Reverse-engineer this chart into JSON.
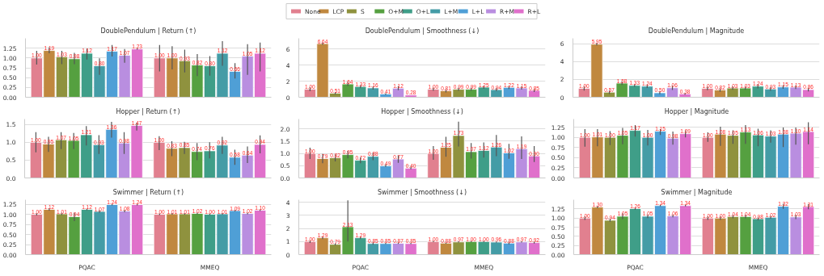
{
  "chart_data": [
    {
      "type": "bar",
      "title": "DoublePendulum | Return (↑)",
      "categories": [
        null,
        null
      ],
      "ylim": [
        0,
        1.5
      ],
      "yticks": [
        {
          "value": 0,
          "label": "0.00"
        },
        {
          "value": 0.25,
          "label": "0.25"
        },
        {
          "value": 0.5,
          "label": "0.50"
        },
        {
          "value": 0.75,
          "label": "0.75"
        },
        {
          "value": 1.0,
          "label": "1.00"
        },
        {
          "value": 1.25,
          "label": "1.25"
        }
      ],
      "grid": "y",
      "tick_labels": "y",
      "legend": "top",
      "series": [
        {
          "name": "None",
          "color": "#e1808f",
          "values": [
            1.0,
            1.0
          ],
          "value_labels": [
            "1.00",
            "1.00"
          ],
          "errors": [
            [
              0.83,
              1.18
            ],
            [
              0.66,
              1.33
            ]
          ]
        },
        {
          "name": "LCP",
          "color": "#c0883f",
          "values": [
            1.19,
            1.0
          ],
          "value_labels": [
            "1.19",
            "1.00"
          ],
          "errors": [
            [
              1.12,
              1.27
            ],
            [
              0.71,
              1.3
            ]
          ]
        },
        {
          "name": "S",
          "color": "#8f923e",
          "values": [
            1.03,
            0.93
          ],
          "value_labels": [
            "1.03",
            "0.93"
          ],
          "errors": [
            [
              0.84,
              1.18
            ],
            [
              0.63,
              1.21
            ]
          ]
        },
        {
          "name": "O+M",
          "color": "#55a040",
          "values": [
            0.98,
            0.82
          ],
          "value_labels": [
            "0.98",
            "0.82"
          ],
          "errors": [
            [
              0.84,
              1.13
            ],
            [
              0.54,
              1.1
            ]
          ]
        },
        {
          "name": "O+L",
          "color": "#3f9e88",
          "values": [
            1.12,
            0.8
          ],
          "value_labels": [
            "1.12",
            "0.80"
          ],
          "errors": [
            [
              0.96,
              1.24
            ],
            [
              0.55,
              1.05
            ]
          ]
        },
        {
          "name": "L+M",
          "color": "#449ca6",
          "values": [
            0.8,
            1.12
          ],
          "value_labels": [
            "0.80",
            "1.12"
          ],
          "errors": [
            [
              0.57,
              0.99
            ],
            [
              0.8,
              1.43
            ]
          ]
        },
        {
          "name": "L+L",
          "color": "#4f9fd6",
          "values": [
            1.17,
            0.66
          ],
          "value_labels": [
            "1.17",
            "0.66"
          ],
          "errors": [
            [
              1.04,
              1.33
            ],
            [
              0.48,
              0.87
            ]
          ]
        },
        {
          "name": "R+M",
          "color": "#b98ee0",
          "values": [
            1.07,
            1.05
          ],
          "value_labels": [
            "1.07",
            "1.05"
          ],
          "errors": [
            [
              0.88,
              1.23
            ],
            [
              0.57,
              1.35
            ]
          ]
        },
        {
          "name": "R+L",
          "color": "#e070cb",
          "values": [
            1.23,
            1.12
          ],
          "value_labels": [
            "1.23",
            "1.12"
          ],
          "errors": [
            [
              1.21,
              1.25
            ],
            [
              0.66,
              1.39
            ]
          ]
        }
      ]
    },
    {
      "type": "bar",
      "title": "DoublePendulum | Smoothness (↓)",
      "categories": [
        null,
        null
      ],
      "ylim": [
        0,
        7.3
      ],
      "yticks": [
        0,
        2,
        4,
        6
      ],
      "grid": "y",
      "tick_labels": "y",
      "series": [
        {
          "color": "#e1808f",
          "values": [
            1.0,
            1.0
          ],
          "value_labels": [
            "1.00",
            "1.00"
          ],
          "errors": [
            0.25,
            0.2
          ]
        },
        {
          "color": "#c0883f",
          "values": [
            6.64,
            0.81
          ],
          "value_labels": [
            "6.64",
            "0.81"
          ],
          "errors": [
            0.15,
            0.2
          ]
        },
        {
          "color": "#8f923e",
          "values": [
            0.51,
            0.99
          ],
          "value_labels": [
            "0.51",
            "0.99"
          ],
          "errors": [
            0.15,
            0.2
          ]
        },
        {
          "color": "#55a040",
          "values": [
            1.64,
            0.99
          ],
          "value_labels": [
            "1.64",
            "0.99"
          ],
          "errors": [
            0.25,
            0.2
          ]
        },
        {
          "color": "#3f9e88",
          "values": [
            1.33,
            1.25
          ],
          "value_labels": [
            "1.33",
            "1.25"
          ],
          "errors": [
            0.2,
            0.2
          ]
        },
        {
          "color": "#449ca6",
          "values": [
            1.16,
            0.94
          ],
          "value_labels": [
            "1.16",
            "0.94"
          ],
          "errors": [
            0.2,
            0.2
          ]
        },
        {
          "color": "#4f9fd6",
          "values": [
            0.41,
            1.22
          ],
          "value_labels": [
            "0.41",
            "1.22"
          ],
          "errors": [
            0.1,
            0.2
          ]
        },
        {
          "color": "#b98ee0",
          "values": [
            1.12,
            1.15
          ],
          "value_labels": [
            "1.12",
            "1.15"
          ],
          "errors": [
            0.25,
            0.2
          ]
        },
        {
          "color": "#e070cb",
          "values": [
            0.28,
            0.85
          ],
          "value_labels": [
            "0.28",
            "0.85"
          ],
          "errors": [
            null,
            0.2
          ]
        }
      ]
    },
    {
      "type": "bar",
      "title": "DoublePendulum | Magnitude",
      "categories": [
        null,
        null
      ],
      "ylim": [
        0,
        6.6
      ],
      "yticks": [
        0,
        2,
        4,
        6
      ],
      "grid": "y",
      "tick_labels": "y",
      "series": [
        {
          "color": "#e1808f",
          "values": [
            1.0,
            1.0
          ],
          "value_labels": [
            "1.00",
            "1.00"
          ],
          "errors": [
            0.25,
            0.2
          ]
        },
        {
          "color": "#c0883f",
          "values": [
            5.95,
            0.82
          ],
          "value_labels": [
            "5.95",
            "0.82"
          ],
          "errors": [
            0.15,
            0.2
          ]
        },
        {
          "color": "#8f923e",
          "values": [
            0.57,
            1.03
          ],
          "value_labels": [
            "0.57",
            "1.03"
          ],
          "errors": [
            0.2,
            0.2
          ]
        },
        {
          "color": "#55a040",
          "values": [
            1.58,
            1.03
          ],
          "value_labels": [
            "1.58",
            "1.03"
          ],
          "errors": [
            0.2,
            0.2
          ]
        },
        {
          "color": "#3f9e88",
          "values": [
            1.33,
            1.24
          ],
          "value_labels": [
            "1.33",
            "1.24"
          ],
          "errors": [
            0.15,
            0.25
          ]
        },
        {
          "color": "#449ca6",
          "values": [
            1.24,
            0.93
          ],
          "value_labels": [
            "1.24",
            "0.93"
          ],
          "errors": [
            0.2,
            0.2
          ]
        },
        {
          "color": "#4f9fd6",
          "values": [
            0.5,
            1.15
          ],
          "value_labels": [
            "0.50",
            "1.15"
          ],
          "errors": [
            0.15,
            0.2
          ]
        },
        {
          "color": "#b98ee0",
          "values": [
            1.06,
            1.13
          ],
          "value_labels": [
            "1.06",
            "1.13"
          ],
          "errors": [
            0.25,
            0.2
          ]
        },
        {
          "color": "#e070cb",
          "values": [
            0.38,
            0.86
          ],
          "value_labels": [
            "0.38",
            "0.86"
          ],
          "errors": [
            0.1,
            0.2
          ]
        }
      ]
    },
    {
      "type": "bar",
      "title": "Hopper | Return (↑)",
      "categories": [
        null,
        null
      ],
      "ylim": [
        0,
        1.65
      ],
      "yticks": [
        {
          "value": 0,
          "label": "0.0"
        },
        {
          "value": 0.5,
          "label": "0.5"
        },
        {
          "value": 1.0,
          "label": "1.0"
        },
        {
          "value": 1.5,
          "label": "1.5"
        }
      ],
      "grid": "y",
      "tick_labels": "y",
      "series": [
        {
          "color": "#e1808f",
          "values": [
            1.0,
            1.0
          ],
          "value_labels": [
            "1.00",
            "1.00"
          ],
          "errors": [
            [
              0.72,
              1.28
            ],
            [
              0.78,
              1.17
            ]
          ]
        },
        {
          "color": "#c0883f",
          "values": [
            0.95,
            0.83
          ],
          "value_labels": [
            "0.95",
            "0.83"
          ],
          "errors": [
            [
              0.73,
              1.15
            ],
            [
              0.61,
              1.03
            ]
          ]
        },
        {
          "color": "#8f923e",
          "values": [
            1.07,
            0.85
          ],
          "value_labels": [
            "1.07",
            "0.85"
          ],
          "errors": [
            [
              0.81,
              1.28
            ],
            [
              0.67,
              1.01
            ]
          ]
        },
        {
          "color": "#55a040",
          "values": [
            1.05,
            0.74
          ],
          "value_labels": [
            "1.05",
            "0.74"
          ],
          "errors": [
            [
              0.81,
              1.26
            ],
            [
              0.5,
              0.98
            ]
          ]
        },
        {
          "color": "#3f9e88",
          "values": [
            1.21,
            0.76
          ],
          "value_labels": [
            "1.21",
            "0.76"
          ],
          "errors": [
            [
              0.91,
              1.45
            ],
            [
              0.55,
              1.0
            ]
          ]
        },
        {
          "color": "#449ca6",
          "values": [
            0.93,
            0.92
          ],
          "value_labels": [
            "0.93",
            "0.92"
          ],
          "errors": [
            [
              0.67,
              1.2
            ],
            [
              0.67,
              1.15
            ]
          ]
        },
        {
          "color": "#4f9fd6",
          "values": [
            1.36,
            0.58
          ],
          "value_labels": [
            "1.36",
            "0.58"
          ],
          "errors": [
            [
              1.13,
              1.57
            ],
            [
              0.37,
              0.79
            ]
          ]
        },
        {
          "color": "#b98ee0",
          "values": [
            0.98,
            0.64
          ],
          "value_labels": [
            "0.98",
            "0.64"
          ],
          "errors": [
            [
              0.67,
              1.28
            ],
            [
              0.42,
              0.88
            ]
          ]
        },
        {
          "color": "#e070cb",
          "values": [
            1.47,
            0.94
          ],
          "value_labels": [
            "1.47",
            "0.94"
          ],
          "errors": [
            [
              1.33,
              1.55
            ],
            [
              0.69,
              1.19
            ]
          ]
        }
      ]
    },
    {
      "type": "bar",
      "title": "Hopper | Smoothness (↓)",
      "categories": [
        null,
        null
      ],
      "ylim": [
        0,
        2.4
      ],
      "yticks": [
        {
          "value": 0,
          "label": "0.0"
        },
        {
          "value": 0.5,
          "label": "0.5"
        },
        {
          "value": 1.0,
          "label": "1.0"
        },
        {
          "value": 1.5,
          "label": "1.5"
        },
        {
          "value": 2.0,
          "label": "2.0"
        }
      ],
      "grid": "y",
      "tick_labels": "y",
      "series": [
        {
          "color": "#e1808f",
          "values": [
            1.0,
            1.0
          ],
          "value_labels": [
            "1.00",
            "1.00"
          ],
          "errors": [
            [
              0.77,
              1.23
            ],
            [
              0.74,
              1.3
            ]
          ]
        },
        {
          "color": "#c0883f",
          "values": [
            0.79,
            1.25
          ],
          "value_labels": [
            "0.79",
            "1.25"
          ],
          "errors": [
            [
              0.6,
              0.98
            ],
            [
              0.86,
              1.68
            ]
          ]
        },
        {
          "color": "#8f923e",
          "values": [
            0.82,
            1.73
          ],
          "value_labels": [
            "0.82",
            "1.73"
          ],
          "errors": [
            [
              0.67,
              0.97
            ],
            [
              1.28,
              2.29
            ]
          ]
        },
        {
          "color": "#55a040",
          "values": [
            0.95,
            1.07
          ],
          "value_labels": [
            "0.95",
            "1.07"
          ],
          "errors": [
            [
              0.8,
              1.1
            ],
            [
              0.79,
              1.42
            ]
          ]
        },
        {
          "color": "#3f9e88",
          "values": [
            0.72,
            1.12
          ],
          "value_labels": [
            "0.72",
            "1.12"
          ],
          "errors": [
            [
              0.6,
              0.85
            ],
            [
              0.83,
              1.45
            ]
          ]
        },
        {
          "color": "#449ca6",
          "values": [
            0.88,
            1.26
          ],
          "value_labels": [
            "0.88",
            "1.26"
          ],
          "errors": [
            [
              0.72,
              1.03
            ],
            [
              0.89,
              1.75
            ]
          ]
        },
        {
          "color": "#4f9fd6",
          "values": [
            0.49,
            1.02
          ],
          "value_labels": [
            "0.49",
            "1.02"
          ],
          "errors": [
            [
              0.45,
              0.55
            ],
            [
              0.78,
              1.39
            ]
          ]
        },
        {
          "color": "#b98ee0",
          "values": [
            0.77,
            1.19
          ],
          "value_labels": [
            "0.77",
            "1.19"
          ],
          "errors": [
            [
              0.62,
              0.92
            ],
            [
              0.77,
              1.69
            ]
          ]
        },
        {
          "color": "#e070cb",
          "values": [
            0.4,
            0.9
          ],
          "value_labels": [
            "0.40",
            "0.90"
          ],
          "errors": [
            [
              0.35,
              0.45
            ],
            [
              0.65,
              1.3
            ]
          ]
        }
      ]
    },
    {
      "type": "bar",
      "title": "Hopper | Magnitude",
      "categories": [
        null,
        null
      ],
      "ylim": [
        0,
        1.45
      ],
      "yticks": [
        {
          "value": 0,
          "label": "0.00"
        },
        {
          "value": 0.25,
          "label": "0.25"
        },
        {
          "value": 0.5,
          "label": "0.50"
        },
        {
          "value": 0.75,
          "label": "0.75"
        },
        {
          "value": 1.0,
          "label": "1.00"
        },
        {
          "value": 1.25,
          "label": "1.25"
        }
      ],
      "grid": "y",
      "tick_labels": "y",
      "series": [
        {
          "color": "#e1808f",
          "values": [
            1.0,
            1.0
          ],
          "value_labels": [
            "1.00",
            "1.00"
          ],
          "errors": [
            [
              0.77,
              1.2
            ],
            [
              0.89,
              1.12
            ]
          ]
        },
        {
          "color": "#c0883f",
          "values": [
            1.01,
            1.08
          ],
          "value_labels": [
            "1.01",
            "1.08"
          ],
          "errors": [
            [
              0.78,
              1.2
            ],
            [
              0.79,
              1.26
            ]
          ]
        },
        {
          "color": "#8f923e",
          "values": [
            1.0,
            1.05
          ],
          "value_labels": [
            "1.00",
            "1.05"
          ],
          "errors": [
            [
              0.81,
              1.15
            ],
            [
              0.84,
              1.17
            ]
          ]
        },
        {
          "color": "#55a040",
          "values": [
            1.05,
            1.13
          ],
          "value_labels": [
            "1.05",
            "1.13"
          ],
          "errors": [
            [
              0.83,
              1.23
            ],
            [
              0.84,
              1.3
            ]
          ]
        },
        {
          "color": "#3f9e88",
          "values": [
            1.17,
            1.06
          ],
          "value_labels": [
            "1.17",
            "1.06"
          ],
          "errors": [
            [
              1.02,
              1.3
            ],
            [
              0.78,
              1.21
            ]
          ]
        },
        {
          "color": "#449ca6",
          "values": [
            1.0,
            1.03
          ],
          "value_labels": [
            "1.00",
            "1.03"
          ],
          "errors": [
            [
              0.8,
              1.18
            ],
            [
              0.87,
              1.17
            ]
          ]
        },
        {
          "color": "#4f9fd6",
          "values": [
            1.15,
            1.08
          ],
          "value_labels": [
            "1.15",
            "1.08"
          ],
          "errors": [
            [
              1.06,
              1.2
            ],
            [
              0.76,
              1.24
            ]
          ]
        },
        {
          "color": "#b98ee0",
          "values": [
            0.98,
            1.1
          ],
          "value_labels": [
            "0.98",
            "1.10"
          ],
          "errors": [
            [
              0.82,
              1.14
            ],
            [
              0.82,
              1.24
            ]
          ]
        },
        {
          "color": "#e070cb",
          "values": [
            1.09,
            1.14
          ],
          "value_labels": [
            "1.09",
            "1.14"
          ],
          "errors": [
            [
              1.0,
              1.17
            ],
            [
              0.83,
              1.37
            ]
          ]
        }
      ]
    },
    {
      "type": "bar",
      "title": "Swimmer | Return (↑)",
      "categories": [
        "PQAC",
        "MMEQ"
      ],
      "ylim": [
        0,
        1.36
      ],
      "yticks": [
        {
          "value": 0,
          "label": "0.00"
        },
        {
          "value": 0.25,
          "label": "0.25"
        },
        {
          "value": 0.5,
          "label": "0.50"
        },
        {
          "value": 0.75,
          "label": "0.75"
        },
        {
          "value": 1.0,
          "label": "1.00"
        },
        {
          "value": 1.25,
          "label": "1.25"
        }
      ],
      "grid": "y",
      "series": [
        {
          "color": "#e1808f",
          "values": [
            1.0,
            1.0
          ],
          "value_labels": [
            "1.00",
            "1.00"
          ],
          "errors": [
            0.03,
            0.02
          ]
        },
        {
          "color": "#c0883f",
          "values": [
            1.12,
            1.01
          ],
          "value_labels": [
            "1.12",
            "1.01"
          ],
          "errors": [
            0.03,
            0.02
          ]
        },
        {
          "color": "#8f923e",
          "values": [
            1.01,
            1.01
          ],
          "value_labels": [
            "1.01",
            "1.01"
          ],
          "errors": [
            0.03,
            0.02
          ]
        },
        {
          "color": "#55a040",
          "values": [
            0.94,
            1.02
          ],
          "value_labels": [
            "0.94",
            "1.02"
          ],
          "errors": [
            [
              0.83,
              1.04
            ],
            0.02
          ]
        },
        {
          "color": "#3f9e88",
          "values": [
            1.12,
            1.0
          ],
          "value_labels": [
            "1.12",
            "1.00"
          ],
          "errors": [
            0.02,
            0.02
          ]
        },
        {
          "color": "#449ca6",
          "values": [
            1.07,
            1.01
          ],
          "value_labels": [
            "1.07",
            "1.01"
          ],
          "errors": [
            0.03,
            0.02
          ]
        },
        {
          "color": "#4f9fd6",
          "values": [
            1.24,
            1.09
          ],
          "value_labels": [
            "1.24",
            "1.09"
          ],
          "errors": [
            0.02,
            0.02
          ]
        },
        {
          "color": "#b98ee0",
          "values": [
            1.08,
            1.02
          ],
          "value_labels": [
            "1.08",
            "1.02"
          ],
          "errors": [
            0.03,
            0.02
          ]
        },
        {
          "color": "#e070cb",
          "values": [
            1.24,
            1.1
          ],
          "value_labels": [
            "1.24",
            "1.10"
          ],
          "errors": [
            0.02,
            0.02
          ]
        }
      ]
    },
    {
      "type": "bar",
      "title": "Swimmer | Smoothness (↓)",
      "categories": [
        "PQAC",
        "MMEQ"
      ],
      "ylim": [
        0,
        4.2
      ],
      "yticks": [
        0,
        1,
        2,
        3,
        4
      ],
      "grid": "y",
      "series": [
        {
          "color": "#e1808f",
          "values": [
            1.0,
            1.0
          ],
          "value_labels": [
            "1.00",
            "1.00"
          ],
          "errors": [
            0.1,
            0.05
          ]
        },
        {
          "color": "#c0883f",
          "values": [
            1.29,
            0.88
          ],
          "value_labels": [
            "1.29",
            "0.88"
          ],
          "errors": [
            0.1,
            0.05
          ]
        },
        {
          "color": "#8f923e",
          "values": [
            0.79,
            0.97
          ],
          "value_labels": [
            "0.79",
            "0.97"
          ],
          "errors": [
            0.08,
            0.05
          ]
        },
        {
          "color": "#55a040",
          "values": [
            2.13,
            1.0
          ],
          "value_labels": [
            "2.13",
            "1.00"
          ],
          "errors": [
            [
              1.0,
              4.15
            ],
            0.05
          ]
        },
        {
          "color": "#3f9e88",
          "values": [
            1.29,
            1.0
          ],
          "value_labels": [
            "1.29",
            "1.00"
          ],
          "errors": [
            0.1,
            0.05
          ]
        },
        {
          "color": "#449ca6",
          "values": [
            0.85,
            0.96
          ],
          "value_labels": [
            "0.85",
            "0.96"
          ],
          "errors": [
            0.1,
            0.05
          ]
        },
        {
          "color": "#4f9fd6",
          "values": [
            0.85,
            0.88
          ],
          "value_labels": [
            "0.85",
            "0.88"
          ],
          "errors": [
            0.05,
            0.1
          ]
        },
        {
          "color": "#b98ee0",
          "values": [
            0.87,
            0.97
          ],
          "value_labels": [
            "0.87",
            "0.97"
          ],
          "errors": [
            0.05,
            0.05
          ]
        },
        {
          "color": "#e070cb",
          "values": [
            0.85,
            0.92
          ],
          "value_labels": [
            "0.85",
            "0.92"
          ],
          "errors": [
            0.05,
            0.07
          ]
        }
      ]
    },
    {
      "type": "bar",
      "title": "Swimmer | Magnitude",
      "categories": [
        "PQAC",
        "MMEQ"
      ],
      "ylim": [
        0,
        1.5
      ],
      "yticks": [
        {
          "value": 0,
          "label": "0.00"
        },
        {
          "value": 0.25,
          "label": "0.25"
        },
        {
          "value": 0.5,
          "label": "0.50"
        },
        {
          "value": 0.75,
          "label": "0.75"
        },
        {
          "value": 1.0,
          "label": "1.00"
        },
        {
          "value": 1.25,
          "label": "1.25"
        }
      ],
      "grid": "y",
      "series": [
        {
          "color": "#e1808f",
          "values": [
            1.0,
            1.0
          ],
          "value_labels": [
            "1.00",
            "1.00"
          ],
          "errors": [
            0.05,
            0.05
          ]
        },
        {
          "color": "#c0883f",
          "values": [
            1.3,
            1.0
          ],
          "value_labels": [
            "1.30",
            "1.00"
          ],
          "errors": [
            0.03,
            0.05
          ]
        },
        {
          "color": "#8f923e",
          "values": [
            0.94,
            1.04
          ],
          "value_labels": [
            "0.94",
            "1.04"
          ],
          "errors": [
            0.04,
            0.05
          ]
        },
        {
          "color": "#55a040",
          "values": [
            1.05,
            1.04
          ],
          "value_labels": [
            "1.05",
            "1.04"
          ],
          "errors": [
            0.08,
            0.05
          ]
        },
        {
          "color": "#3f9e88",
          "values": [
            1.26,
            0.98
          ],
          "value_labels": [
            "1.26",
            "0.98"
          ],
          "errors": [
            0.03,
            0.04
          ]
        },
        {
          "color": "#449ca6",
          "values": [
            1.05,
            1.02
          ],
          "value_labels": [
            "1.05",
            "1.02"
          ],
          "errors": [
            0.05,
            0.04
          ]
        },
        {
          "color": "#4f9fd6",
          "values": [
            1.34,
            1.32
          ],
          "value_labels": [
            "1.34",
            "1.32"
          ],
          "errors": [
            0.02,
            0.07
          ]
        },
        {
          "color": "#b98ee0",
          "values": [
            1.06,
            1.03
          ],
          "value_labels": [
            "1.06",
            "1.03"
          ],
          "errors": [
            0.04,
            0.06
          ]
        },
        {
          "color": "#e070cb",
          "values": [
            1.34,
            1.31
          ],
          "value_labels": [
            "1.34",
            "1.31"
          ],
          "errors": [
            0.02,
            0.07
          ]
        }
      ]
    }
  ]
}
